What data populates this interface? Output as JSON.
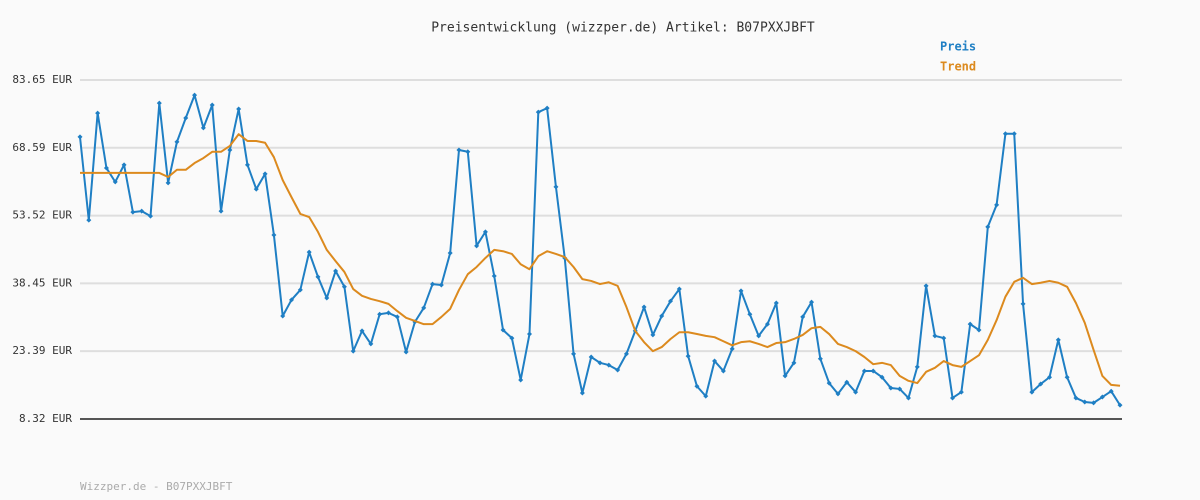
{
  "chart_data": {
    "type": "line",
    "title": "Preisentwicklung (wizzper.de) Artikel: B07PXXJBFT",
    "ylim": [
      8.32,
      83.65
    ],
    "yticks": [
      {
        "value": 8.32,
        "label": "8.32 EUR"
      },
      {
        "value": 23.39,
        "label": "23.39 EUR"
      },
      {
        "value": 38.45,
        "label": "38.45 EUR"
      },
      {
        "value": 53.52,
        "label": "53.52 EUR"
      },
      {
        "value": 68.59,
        "label": "68.59 EUR"
      },
      {
        "value": 83.65,
        "label": "83.65 EUR"
      }
    ],
    "grid": true,
    "series": [
      {
        "name": "Preis",
        "color": "#1f7fc4",
        "values": [
          71.0,
          52.5,
          76.3,
          64.1,
          61.0,
          64.8,
          54.3,
          54.5,
          53.4,
          78.5,
          60.8,
          69.9,
          75.2,
          80.3,
          73.0,
          78.1,
          54.5,
          68.1,
          77.2,
          64.8,
          59.4,
          62.8,
          49.2,
          31.2,
          34.8,
          37.0,
          45.4,
          39.9,
          35.2,
          41.2,
          37.7,
          23.4,
          27.9,
          25.0,
          31.6,
          31.9,
          31.0,
          23.2,
          29.9,
          33.0,
          38.3,
          38.1,
          45.2,
          68.1,
          67.7,
          46.8,
          49.9,
          40.1,
          28.1,
          26.3,
          17.0,
          27.2,
          76.5,
          77.4,
          59.9,
          44.1,
          22.8,
          14.1,
          22.1,
          20.8,
          20.3,
          19.2,
          22.8,
          27.9,
          33.2,
          27.0,
          31.2,
          34.5,
          37.2,
          22.3,
          15.6,
          13.4,
          21.2,
          19.0,
          23.9,
          36.8,
          31.6,
          26.8,
          29.4,
          34.1,
          17.9,
          20.8,
          31.0,
          34.3,
          21.7,
          16.3,
          13.9,
          16.5,
          14.3,
          19.0,
          19.0,
          17.6,
          15.2,
          15.0,
          13.0,
          19.9,
          37.9,
          26.8,
          26.3,
          13.0,
          14.3,
          29.4,
          28.1,
          51.0,
          55.9,
          71.7,
          71.7,
          33.9,
          14.3,
          16.1,
          17.6,
          25.9,
          17.6,
          13.0,
          12.1,
          11.9,
          13.2,
          14.5,
          11.4
        ]
      },
      {
        "name": "Trend",
        "color": "#dc8a1e",
        "values": [
          63.0,
          63.0,
          63.0,
          63.0,
          63.0,
          63.0,
          63.0,
          63.0,
          63.0,
          63.0,
          62.1,
          63.7,
          63.7,
          65.2,
          66.3,
          67.7,
          67.7,
          69.0,
          71.6,
          70.1,
          70.1,
          69.7,
          66.5,
          61.4,
          57.6,
          53.9,
          53.2,
          49.9,
          45.9,
          43.4,
          41.0,
          37.2,
          35.7,
          35.0,
          34.5,
          33.9,
          32.3,
          30.8,
          30.1,
          29.4,
          29.4,
          31.0,
          32.8,
          37.0,
          40.5,
          42.1,
          44.1,
          45.9,
          45.6,
          45.0,
          42.7,
          41.6,
          44.5,
          45.6,
          45.0,
          44.3,
          42.1,
          39.4,
          39.0,
          38.3,
          38.7,
          37.9,
          33.2,
          27.9,
          25.4,
          23.4,
          24.3,
          26.1,
          27.6,
          27.6,
          27.2,
          26.8,
          26.5,
          25.6,
          24.7,
          25.4,
          25.6,
          25.0,
          24.3,
          25.2,
          25.4,
          26.1,
          27.0,
          28.5,
          28.8,
          27.2,
          25.0,
          24.3,
          23.4,
          22.1,
          20.5,
          20.8,
          20.3,
          17.9,
          16.8,
          16.3,
          18.8,
          19.7,
          21.2,
          20.3,
          19.9,
          21.2,
          22.5,
          25.9,
          30.3,
          35.5,
          38.8,
          39.7,
          38.3,
          38.6,
          39.0,
          38.6,
          37.7,
          34.1,
          29.7,
          23.7,
          17.9,
          15.9,
          15.7
        ]
      }
    ]
  },
  "footer": "Wizzper.de - B07PXXJBFT"
}
